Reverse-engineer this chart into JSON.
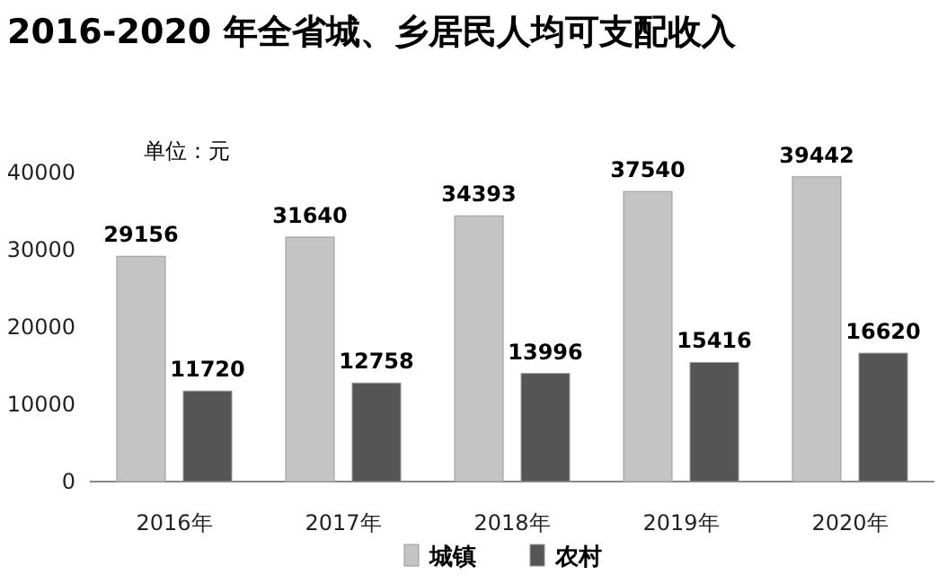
{
  "chart_data": {
    "type": "bar",
    "title": "2016-2020 年全省城、乡居民人均可支配收入",
    "categories": [
      "2016年",
      "2017年",
      "2018年",
      "2019年",
      "2020年"
    ],
    "series": [
      {
        "name": "城镇",
        "color": "#c4c4c4",
        "values": [
          29156,
          31640,
          34393,
          37540,
          39442
        ]
      },
      {
        "name": "农村",
        "color": "#555555",
        "values": [
          11720,
          12758,
          13996,
          15416,
          16620
        ]
      }
    ],
    "ylim": [
      0,
      40000
    ],
    "yticks": [
      0,
      10000,
      20000,
      30000,
      40000
    ],
    "data_labels": true,
    "legend": "bottom",
    "annotations": [
      "单位：元"
    ]
  }
}
